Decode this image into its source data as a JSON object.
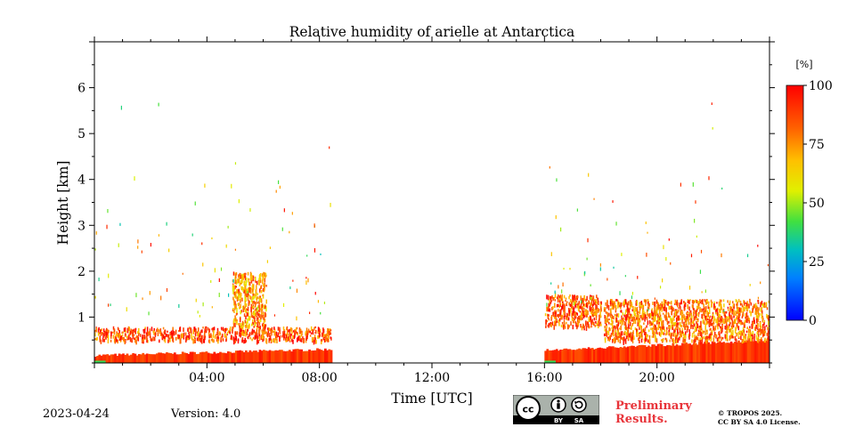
{
  "chart_data": {
    "type": "heatmap",
    "title": "Relative humidity of arielle at Antarctica",
    "xlabel": "Time [UTC]",
    "ylabel": "Height [km]",
    "xlim": [
      0,
      24
    ],
    "ylim": [
      0,
      7
    ],
    "x_ticks": [
      "04:00",
      "08:00",
      "12:00",
      "16:00",
      "20:00"
    ],
    "x_tick_values": [
      4,
      8,
      12,
      16,
      20
    ],
    "y_ticks": [
      "1",
      "2",
      "3",
      "4",
      "5",
      "6"
    ],
    "y_tick_values": [
      1,
      2,
      3,
      4,
      5,
      6
    ],
    "colorbar": {
      "unit": "[%]",
      "range": [
        0,
        100
      ],
      "ticks": [
        "0",
        "25",
        "50",
        "75",
        "100"
      ],
      "tick_values": [
        0,
        25,
        50,
        75,
        100
      ],
      "colormap": [
        "#0000ff",
        "#00a0ff",
        "#00e0a0",
        "#60e020",
        "#ffff00",
        "#ffa000",
        "#ff3000",
        "#ff0000"
      ]
    },
    "data_regions": [
      {
        "name": "surface layer",
        "x": [
          0,
          8.45
        ],
        "y": [
          0,
          0.3
        ],
        "value": 90
      },
      {
        "name": "low cloud layer",
        "x": [
          0,
          8.45
        ],
        "y": [
          0.5,
          0.8
        ],
        "value": 85
      },
      {
        "name": "scattered column",
        "x": [
          4.9,
          6.1
        ],
        "y": [
          0.8,
          2.0
        ],
        "value": 75
      },
      {
        "name": "surface layer",
        "x": [
          16,
          24
        ],
        "y": [
          0,
          0.5
        ],
        "value": 90
      },
      {
        "name": "low cloud layer",
        "x": [
          16,
          18
        ],
        "y": [
          0.8,
          1.5
        ],
        "value": 85
      },
      {
        "name": "scattered layer",
        "x": [
          18.1,
          24
        ],
        "y": [
          0.5,
          1.4
        ],
        "value": 80
      }
    ]
  },
  "footer": {
    "date": "2023-04-24",
    "version": "Version: 4.0",
    "preliminary_line1": "Preliminary",
    "preliminary_line2": "Results.",
    "copyright_line1": "© TROPOS 2025.",
    "copyright_line2": "CC BY SA 4.0 License.",
    "license_badge_labels": [
      "BY",
      "SA"
    ],
    "preliminary_color": "#e8343a"
  }
}
